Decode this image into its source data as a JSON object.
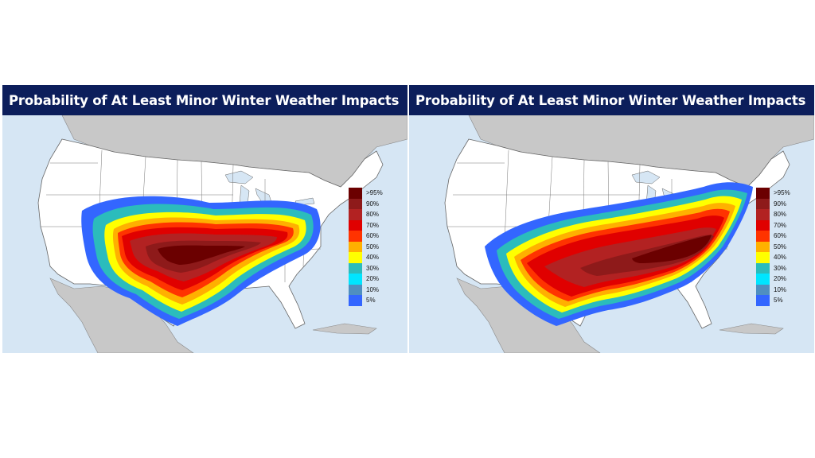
{
  "panels": [
    {
      "title": "Probability of At Least Minor Winter Weather Impacts",
      "legend": [
        {
          "label": ">95%",
          "color": "#6b0000"
        },
        {
          "label": "90%",
          "color": "#8e1a1a"
        },
        {
          "label": "80%",
          "color": "#b22222"
        },
        {
          "label": "70%",
          "color": "#e00000"
        },
        {
          "label": "60%",
          "color": "#ff3300"
        },
        {
          "label": "50%",
          "color": "#ffb000"
        },
        {
          "label": "40%",
          "color": "#ffff00"
        },
        {
          "label": "30%",
          "color": "#2bbcbc"
        },
        {
          "label": "20%",
          "color": "#00e5ff"
        },
        {
          "label": "10%",
          "color": "#4f8fc0"
        },
        {
          "label": "5%",
          "color": "#3366ff"
        }
      ]
    },
    {
      "title": "Probability of At Least Minor Winter Weather Impacts",
      "legend": [
        {
          "label": ">95%",
          "color": "#6b0000"
        },
        {
          "label": "90%",
          "color": "#8e1a1a"
        },
        {
          "label": "80%",
          "color": "#b22222"
        },
        {
          "label": "70%",
          "color": "#e00000"
        },
        {
          "label": "60%",
          "color": "#ff3300"
        },
        {
          "label": "50%",
          "color": "#ffb000"
        },
        {
          "label": "40%",
          "color": "#ffff00"
        },
        {
          "label": "30%",
          "color": "#2bbcbc"
        },
        {
          "label": "20%",
          "color": "#00e5ff"
        },
        {
          "label": "10%",
          "color": "#4f8fc0"
        },
        {
          "label": "5%",
          "color": "#3366ff"
        }
      ]
    }
  ],
  "colors": {
    "title_bar": "#0c1e5b",
    "ocean": "#d6e6f4",
    "land_foreign": "#c8c8c8",
    "land_us": "#ffffff"
  }
}
